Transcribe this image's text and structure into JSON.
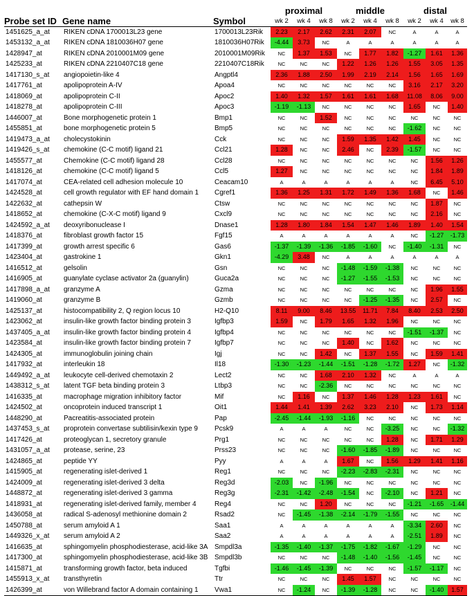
{
  "headers": {
    "probe": "Probe set ID",
    "gene": "Gene name",
    "symbol": "Symbol",
    "groups": [
      "proximal",
      "middle",
      "distal"
    ],
    "weeks": [
      "wk 2",
      "wk 4",
      "wk 8",
      "wk 2",
      "wk 4",
      "wk 8",
      "wk 2",
      "wk 4",
      "wk 8"
    ]
  },
  "colors": {
    "up": "#ee1c1c",
    "down": "#2ed82e"
  },
  "rows": [
    {
      "probe": "1451625_a_at",
      "gene": "RIKEN cDNA 1700013L23 gene",
      "symbol": "1700013L23Rik",
      "vals": [
        "2.23",
        "2.17",
        "2.62",
        "2.31",
        "2.07",
        "NC",
        "A",
        "A",
        "A"
      ]
    },
    {
      "probe": "1453132_a_at",
      "gene": "RIKEN cDNA 1810036H07 gene",
      "symbol": "1810036H07Rik",
      "vals": [
        "-4.44",
        "3.73",
        "NC",
        "A",
        "A",
        "A",
        "A",
        "A",
        "A"
      ]
    },
    {
      "probe": "1428947_at",
      "gene": "RIKEN cDNA 2010001M09 gene",
      "symbol": "2010001M09Rik",
      "vals": [
        "NC",
        "1.37",
        "1.53",
        "NC",
        "1.77",
        "1.82",
        "-1.27",
        "1.61",
        "1.36"
      ]
    },
    {
      "probe": "1425233_at",
      "gene": "RIKEN cDNA 2210407C18 gene",
      "symbol": "2210407C18Rik",
      "vals": [
        "NC",
        "NC",
        "NC",
        "1.22",
        "1.26",
        "1.26",
        "1.55",
        "3.05",
        "1.35"
      ]
    },
    {
      "probe": "1417130_s_at",
      "gene": "angiopoietin-like 4",
      "symbol": "Angptl4",
      "vals": [
        "2.36",
        "1.88",
        "2.50",
        "1.99",
        "2.19",
        "2.14",
        "1.56",
        "1.65",
        "1.69"
      ]
    },
    {
      "probe": "1417761_at",
      "gene": "apolipoprotein A-IV",
      "symbol": "Apoa4",
      "vals": [
        "NC",
        "NC",
        "NC",
        "NC",
        "NC",
        "NC",
        "3.16",
        "2.17",
        "3.20"
      ]
    },
    {
      "probe": "1418069_at",
      "gene": "apolipoprotein C-II",
      "symbol": "Apoc2",
      "vals": [
        "1.40",
        "1.32",
        "1.57",
        "1.61",
        "1.61",
        "1.68",
        "11.08",
        "8.06",
        "9.00"
      ]
    },
    {
      "probe": "1418278_at",
      "gene": "apolipoprotein C-III",
      "symbol": "Apoc3",
      "vals": [
        "-1.19",
        "-1.13",
        "NC",
        "NC",
        "NC",
        "NC",
        "1.65",
        "NC",
        "1.40"
      ]
    },
    {
      "probe": "1446007_at",
      "gene": "Bone morphogenetic protein 1",
      "symbol": "Bmp1",
      "vals": [
        "NC",
        "NC",
        "1.52",
        "NC",
        "NC",
        "NC",
        "NC",
        "NC",
        "NC"
      ]
    },
    {
      "probe": "1455851_at",
      "gene": "bone morphogenetic protein 5",
      "symbol": "Bmp5",
      "vals": [
        "NC",
        "NC",
        "NC",
        "NC",
        "NC",
        "NC",
        "-1.62",
        "NC",
        "NC"
      ]
    },
    {
      "probe": "1419473_a_at",
      "gene": "cholecystokinin",
      "symbol": "Cck",
      "vals": [
        "NC",
        "NC",
        "NC",
        "1.59",
        "1.35",
        "1.42",
        "1.45",
        "NC",
        "NC"
      ]
    },
    {
      "probe": "1419426_s_at",
      "gene": "chemokine (C-C motif) ligand 21",
      "symbol": "Ccl21",
      "vals": [
        "1.28",
        "NC",
        "NC",
        "2.46",
        "NC",
        "2.39",
        "-1.57",
        "NC",
        "NC"
      ]
    },
    {
      "probe": "1455577_at",
      "gene": "Chemokine (C-C motif) ligand 28",
      "symbol": "Ccl28",
      "vals": [
        "NC",
        "NC",
        "NC",
        "NC",
        "NC",
        "NC",
        "NC",
        "1.56",
        "1.26"
      ]
    },
    {
      "probe": "1418126_at",
      "gene": "chemokine (C-C motif) ligand 5",
      "symbol": "Ccl5",
      "vals": [
        "1.27",
        "NC",
        "NC",
        "NC",
        "NC",
        "NC",
        "NC",
        "1.84",
        "1.89"
      ]
    },
    {
      "probe": "1417074_at",
      "gene": "CEA-related cell adhesion molecule 10",
      "symbol": "Ceacam10",
      "vals": [
        "A",
        "A",
        "A",
        "A",
        "A",
        "A",
        "NC",
        "6.45",
        "5.10"
      ]
    },
    {
      "probe": "1424528_at",
      "gene": "cell growth regulator with EF hand domain 1",
      "symbol": "Cgref1",
      "vals": [
        "1.36",
        "1.25",
        "1.31",
        "1.72",
        "1.49",
        "1.36",
        "1.68",
        "NC",
        "1.46"
      ]
    },
    {
      "probe": "1422632_at",
      "gene": "cathepsin W",
      "symbol": "Ctsw",
      "vals": [
        "NC",
        "NC",
        "NC",
        "NC",
        "NC",
        "NC",
        "NC",
        "1.87",
        "NC"
      ]
    },
    {
      "probe": "1418652_at",
      "gene": "chemokine (C-X-C motif) ligand 9",
      "symbol": "Cxcl9",
      "vals": [
        "NC",
        "NC",
        "NC",
        "NC",
        "NC",
        "NC",
        "NC",
        "2.16",
        "NC"
      ]
    },
    {
      "probe": "1424592_a_at",
      "gene": "deoxyribonuclease I",
      "symbol": "Dnase1",
      "vals": [
        "1.28",
        "1.80",
        "1.84",
        "1.54",
        "1.47",
        "1.46",
        "1.89",
        "1.40",
        "1.54"
      ]
    },
    {
      "probe": "1418376_at",
      "gene": "fibroblast growth factor 15",
      "symbol": "Fgf15",
      "vals": [
        "A",
        "A",
        "A",
        "A",
        "A",
        "A",
        "NC",
        "-1.27",
        "-1.73"
      ]
    },
    {
      "probe": "1417399_at",
      "gene": "growth arrest specific 6",
      "symbol": "Gas6",
      "vals": [
        "-1.37",
        "-1.39",
        "-1.36",
        "-1.85",
        "-1.60",
        "NC",
        "-1.40",
        "-1.31",
        "NC"
      ]
    },
    {
      "probe": "1423404_at",
      "gene": "gastrokine 1",
      "symbol": "Gkn1",
      "vals": [
        "-4.29",
        "3.48",
        "NC",
        "A",
        "A",
        "A",
        "A",
        "A",
        "A"
      ]
    },
    {
      "probe": "1416512_at",
      "gene": "gelsolin",
      "symbol": "Gsn",
      "vals": [
        "NC",
        "NC",
        "NC",
        "-1.48",
        "-1.59",
        "-1.38",
        "NC",
        "NC",
        "NC"
      ]
    },
    {
      "probe": "1416905_at",
      "gene": "guanylate cyclase activator 2a (guanylin)",
      "symbol": "Guca2a",
      "vals": [
        "NC",
        "NC",
        "NC",
        "-1.27",
        "-1.55",
        "-1.53",
        "NC",
        "NC",
        "NC"
      ]
    },
    {
      "probe": "1417898_a_at",
      "gene": "granzyme A",
      "symbol": "Gzma",
      "vals": [
        "NC",
        "NC",
        "NC",
        "NC",
        "NC",
        "NC",
        "NC",
        "1.96",
        "1.55"
      ]
    },
    {
      "probe": "1419060_at",
      "gene": "granzyme B",
      "symbol": "Gzmb",
      "vals": [
        "NC",
        "NC",
        "NC",
        "NC",
        "-1.25",
        "-1.35",
        "NC",
        "2.57",
        "NC"
      ]
    },
    {
      "probe": "1425137_at",
      "gene": "histocompatibility 2, Q region locus 10",
      "symbol": "H2-Q10",
      "vals": [
        "8.11",
        "9.00",
        "8.46",
        "13.55",
        "11.71",
        "7.84",
        "8.40",
        "2.53",
        "2.50"
      ]
    },
    {
      "probe": "1423062_at",
      "gene": "insulin-like growth factor binding protein 3",
      "symbol": "Igfbp3",
      "vals": [
        "1.59",
        "NC",
        "1.79",
        "1.65",
        "1.32",
        "1.96",
        "NC",
        "NC",
        "NC"
      ]
    },
    {
      "probe": "1437405_a_at",
      "gene": "insulin-like growth factor binding protein 4",
      "symbol": "Igfbp4",
      "vals": [
        "NC",
        "NC",
        "NC",
        "NC",
        "NC",
        "NC",
        "-1.51",
        "-1.37",
        "NC"
      ]
    },
    {
      "probe": "1423584_at",
      "gene": "insulin-like growth factor binding protein 7",
      "symbol": "Igfbp7",
      "vals": [
        "NC",
        "NC",
        "NC",
        "1.40",
        "NC",
        "1.62",
        "NC",
        "NC",
        "NC"
      ]
    },
    {
      "probe": "1424305_at",
      "gene": "immunoglobulin joining chain",
      "symbol": "Igj",
      "vals": [
        "NC",
        "NC",
        "1.42",
        "NC",
        "1.37",
        "1.55",
        "NC",
        "1.59",
        "1.41"
      ]
    },
    {
      "probe": "1417932_at",
      "gene": "interleukin 18",
      "symbol": "Il18",
      "vals": [
        "-1.30",
        "-1.23",
        "-1.44",
        "-1.51",
        "-1.28",
        "-1.72",
        "1.27",
        "NC",
        "-1.32"
      ]
    },
    {
      "probe": "1449492_a_at",
      "gene": "leukocyte cell-derived chemotaxin 2",
      "symbol": "Lect2",
      "vals": [
        "NC",
        "NC",
        "1.68",
        "2.10",
        "1.32",
        "NC",
        "A",
        "A",
        "A"
      ]
    },
    {
      "probe": "1438312_s_at",
      "gene": "latent TGF beta binding protein 3",
      "symbol": "Ltbp3",
      "vals": [
        "NC",
        "NC",
        "-2.36",
        "NC",
        "NC",
        "NC",
        "NC",
        "NC",
        "NC"
      ]
    },
    {
      "probe": "1416335_at",
      "gene": "macrophage migration inhibitory factor",
      "symbol": "Mif",
      "vals": [
        "NC",
        "1.16",
        "NC",
        "1.37",
        "1.46",
        "1.28",
        "1.23",
        "1.61",
        "NC"
      ]
    },
    {
      "probe": "1424502_at",
      "gene": "oncoprotein induced transcript 1",
      "symbol": "Oit1",
      "vals": [
        "1.44",
        "1.41",
        "1.39",
        "2.62",
        "3.23",
        "2.10",
        "NC",
        "1.73",
        "1.14"
      ]
    },
    {
      "probe": "1448290_at",
      "gene": "Pacreatitis-associated protein",
      "symbol": "Pap",
      "vals": [
        "-2.45",
        "-1.44",
        "-1.93",
        "-1.16",
        "NC",
        "NC",
        "NC",
        "NC",
        "NC"
      ]
    },
    {
      "probe": "1437453_s_at",
      "gene": "proprotein convertase subtilisin/kexin type 9",
      "symbol": "Pcsk9",
      "vals": [
        "A",
        "A",
        "A",
        "NC",
        "NC",
        "-3.25",
        "NC",
        "NC",
        "-1.32"
      ]
    },
    {
      "probe": "1417426_at",
      "gene": "proteoglycan 1, secretory granule",
      "symbol": "Prg1",
      "vals": [
        "NC",
        "NC",
        "NC",
        "NC",
        "NC",
        "1.28",
        "NC",
        "1.71",
        "1.29"
      ]
    },
    {
      "probe": "1431057_a_at",
      "gene": "protease, serine, 23",
      "symbol": "Prss23",
      "vals": [
        "NC",
        "NC",
        "NC",
        "-1.60",
        "-1.85",
        "-1.89",
        "NC",
        "NC",
        "NC"
      ]
    },
    {
      "probe": "1424865_at",
      "gene": "peptide YY",
      "symbol": "Pyy",
      "vals": [
        "A",
        "A",
        "A",
        "1.67",
        "NC",
        "1.56",
        "1.29",
        "1.41",
        "1.16"
      ]
    },
    {
      "probe": "1415905_at",
      "gene": "regenerating islet-derived 1",
      "symbol": "Reg1",
      "vals": [
        "NC",
        "NC",
        "NC",
        "-2.23",
        "-2.83",
        "-2.31",
        "NC",
        "NC",
        "NC"
      ]
    },
    {
      "probe": "1424009_at",
      "gene": "regenerating islet-derived 3 delta",
      "symbol": "Reg3d",
      "vals": [
        "-2.03",
        "NC",
        "-1.96",
        "NC",
        "NC",
        "NC",
        "NC",
        "NC",
        "NC"
      ]
    },
    {
      "probe": "1448872_at",
      "gene": "regenerating islet-derived 3 gamma",
      "symbol": "Reg3g",
      "vals": [
        "-2.31",
        "-1.42",
        "-2.48",
        "-1.54",
        "NC",
        "-2.10",
        "NC",
        "1.21",
        "NC"
      ]
    },
    {
      "probe": "1418931_at",
      "gene": "regenerating islet-derived family, member 4",
      "symbol": "Reg4",
      "vals": [
        "NC",
        "NC",
        "1.20",
        "NC",
        "NC",
        "NC",
        "-1.21",
        "-1.65",
        "-1.44"
      ]
    },
    {
      "probe": "1436058_at",
      "gene": "radical S-adenosyl methionine domain 2",
      "symbol": "Rsad2",
      "vals": [
        "NC",
        "-1.45",
        "-1.38",
        "-2.14",
        "-1.79",
        "-1.55",
        "NC",
        "NC",
        "NC"
      ]
    },
    {
      "probe": "1450788_at",
      "gene": "serum amyloid A 1",
      "symbol": "Saa1",
      "vals": [
        "A",
        "A",
        "A",
        "A",
        "A",
        "A",
        "-3.34",
        "2.60",
        "NC"
      ]
    },
    {
      "probe": "1449326_x_at",
      "gene": "serum amyloid A 2",
      "symbol": "Saa2",
      "vals": [
        "A",
        "A",
        "A",
        "A",
        "A",
        "A",
        "-2.51",
        "1.89",
        "NC"
      ]
    },
    {
      "probe": "1416635_at",
      "gene": "sphingomyelin phosphodiesterase, acid-like 3A",
      "symbol": "Smpdl3a",
      "vals": [
        "-1.35",
        "-1.40",
        "-1.37",
        "-1.75",
        "-1.82",
        "-1.67",
        "-1.29",
        "NC",
        "NC"
      ]
    },
    {
      "probe": "1417300_at",
      "gene": "sphingomyelin phosphodiesterase, acid-like 3B",
      "symbol": "Smpdl3b",
      "vals": [
        "NC",
        "NC",
        "NC",
        "-1.48",
        "-1.40",
        "-1.56",
        "-1.45",
        "NC",
        "NC"
      ]
    },
    {
      "probe": "1415871_at",
      "gene": "transforming growth factor, beta induced",
      "symbol": "Tgfbi",
      "vals": [
        "-1.46",
        "-1.45",
        "-1.39",
        "NC",
        "NC",
        "NC",
        "-1.57",
        "-1.17",
        "NC"
      ]
    },
    {
      "probe": "1455913_x_at",
      "gene": "transthyretin",
      "symbol": "Ttr",
      "vals": [
        "NC",
        "NC",
        "NC",
        "1.45",
        "1.57",
        "NC",
        "NC",
        "NC",
        "NC"
      ]
    },
    {
      "probe": "1426399_at",
      "gene": "von Willebrand factor A domain containing 1",
      "symbol": "Vwa1",
      "vals": [
        "NC",
        "-1.24",
        "NC",
        "-1.39",
        "-1.28",
        "NC",
        "NC",
        "-1.40",
        "1.57"
      ]
    }
  ]
}
